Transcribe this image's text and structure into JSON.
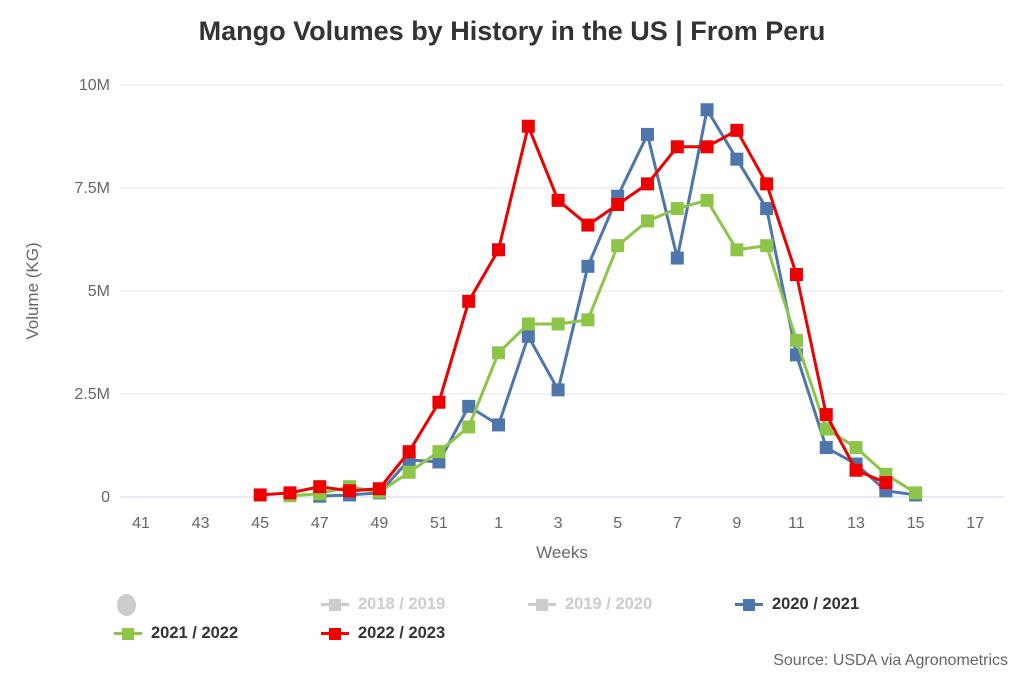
{
  "title": "Mango Volumes by History in the US | From Peru",
  "source": "Source: USDA via Agronometrics",
  "colors": {
    "title_text": "#333333",
    "axis_text": "#666666",
    "gridline": "#e6e6e6",
    "axis_line": "#ccd6eb",
    "inactive_legend": "#cccccc",
    "blue_series": "#4d76ac",
    "green_series": "#8dc549",
    "red_series": "#ee0000"
  },
  "chart_data": {
    "type": "line",
    "title": "Mango Volumes by History in the US | From Peru",
    "xlabel": "Weeks",
    "ylabel": "Volume (KG)",
    "ylim": [
      0,
      10000000
    ],
    "grid": "horizontal-only",
    "legend_position": "bottom",
    "y_ticks": [
      {
        "value": 0,
        "label": "0"
      },
      {
        "value": 2500000,
        "label": "2.5M"
      },
      {
        "value": 5000000,
        "label": "5M"
      },
      {
        "value": 7500000,
        "label": "7.5M"
      },
      {
        "value": 10000000,
        "label": "10M"
      }
    ],
    "weeks_axis_order": [
      41,
      42,
      43,
      44,
      45,
      46,
      47,
      48,
      49,
      50,
      51,
      52,
      1,
      2,
      3,
      4,
      5,
      6,
      7,
      8,
      9,
      10,
      11,
      12,
      13,
      14,
      15,
      16,
      17,
      18
    ],
    "x_tick_labels": [
      "41",
      "43",
      "45",
      "47",
      "49",
      "51",
      "1",
      "3",
      "5",
      "7",
      "9",
      "11",
      "13",
      "15",
      "17"
    ],
    "series": [
      {
        "name": "2018 / 2019",
        "color": "#cccccc",
        "active": false,
        "points": []
      },
      {
        "name": "2019 / 2020",
        "color": "#cccccc",
        "active": false,
        "points": []
      },
      {
        "name": "2020 / 2021",
        "color": "#4d76ac",
        "active": true,
        "points": [
          [
            47,
            20000
          ],
          [
            48,
            50000
          ],
          [
            49,
            100000
          ],
          [
            50,
            900000
          ],
          [
            51,
            850000
          ],
          [
            52,
            2200000
          ],
          [
            1,
            1750000
          ],
          [
            2,
            3900000
          ],
          [
            3,
            2600000
          ],
          [
            4,
            5600000
          ],
          [
            5,
            7300000
          ],
          [
            6,
            8800000
          ],
          [
            7,
            5800000
          ],
          [
            8,
            9400000
          ],
          [
            9,
            8200000
          ],
          [
            10,
            7000000
          ],
          [
            11,
            3450000
          ],
          [
            12,
            1200000
          ],
          [
            13,
            800000
          ],
          [
            14,
            150000
          ],
          [
            15,
            50000
          ]
        ]
      },
      {
        "name": "2021 / 2022",
        "color": "#8dc549",
        "active": true,
        "points": [
          [
            46,
            30000
          ],
          [
            47,
            80000
          ],
          [
            48,
            250000
          ],
          [
            49,
            120000
          ],
          [
            50,
            600000
          ],
          [
            51,
            1100000
          ],
          [
            52,
            1700000
          ],
          [
            1,
            3500000
          ],
          [
            2,
            4200000
          ],
          [
            3,
            4200000
          ],
          [
            4,
            4300000
          ],
          [
            5,
            6100000
          ],
          [
            6,
            6700000
          ],
          [
            7,
            7000000
          ],
          [
            8,
            7200000
          ],
          [
            9,
            6000000
          ],
          [
            10,
            6100000
          ],
          [
            11,
            3800000
          ],
          [
            12,
            1650000
          ],
          [
            13,
            1200000
          ],
          [
            14,
            550000
          ],
          [
            15,
            100000
          ]
        ]
      },
      {
        "name": "2022 / 2023",
        "color": "#ee0000",
        "active": true,
        "points": [
          [
            45,
            50000
          ],
          [
            46,
            100000
          ],
          [
            47,
            250000
          ],
          [
            48,
            150000
          ],
          [
            49,
            200000
          ],
          [
            50,
            1100000
          ],
          [
            51,
            2300000
          ],
          [
            52,
            4750000
          ],
          [
            1,
            6000000
          ],
          [
            2,
            9000000
          ],
          [
            3,
            7200000
          ],
          [
            4,
            6600000
          ],
          [
            5,
            7100000
          ],
          [
            6,
            7600000
          ],
          [
            7,
            8500000
          ],
          [
            8,
            8500000
          ],
          [
            9,
            8900000
          ],
          [
            10,
            7600000
          ],
          [
            11,
            5400000
          ],
          [
            12,
            2000000
          ],
          [
            13,
            650000
          ],
          [
            14,
            350000
          ]
        ]
      }
    ]
  },
  "legend": {
    "items": [
      {
        "label": "",
        "shape": "circle",
        "color": "#cccccc",
        "active": true
      },
      {
        "label": "2018 / 2019",
        "shape": "line-square",
        "color": "#cccccc",
        "active": false
      },
      {
        "label": "2019 / 2020",
        "shape": "line-square",
        "color": "#cccccc",
        "active": false
      },
      {
        "label": "2020 / 2021",
        "shape": "line-square",
        "color": "#4d76ac",
        "active": true
      },
      {
        "label": "2021 / 2022",
        "shape": "line-square",
        "color": "#8dc549",
        "active": true
      },
      {
        "label": "2022 / 2023",
        "shape": "line-square",
        "color": "#ee0000",
        "active": true
      }
    ]
  }
}
